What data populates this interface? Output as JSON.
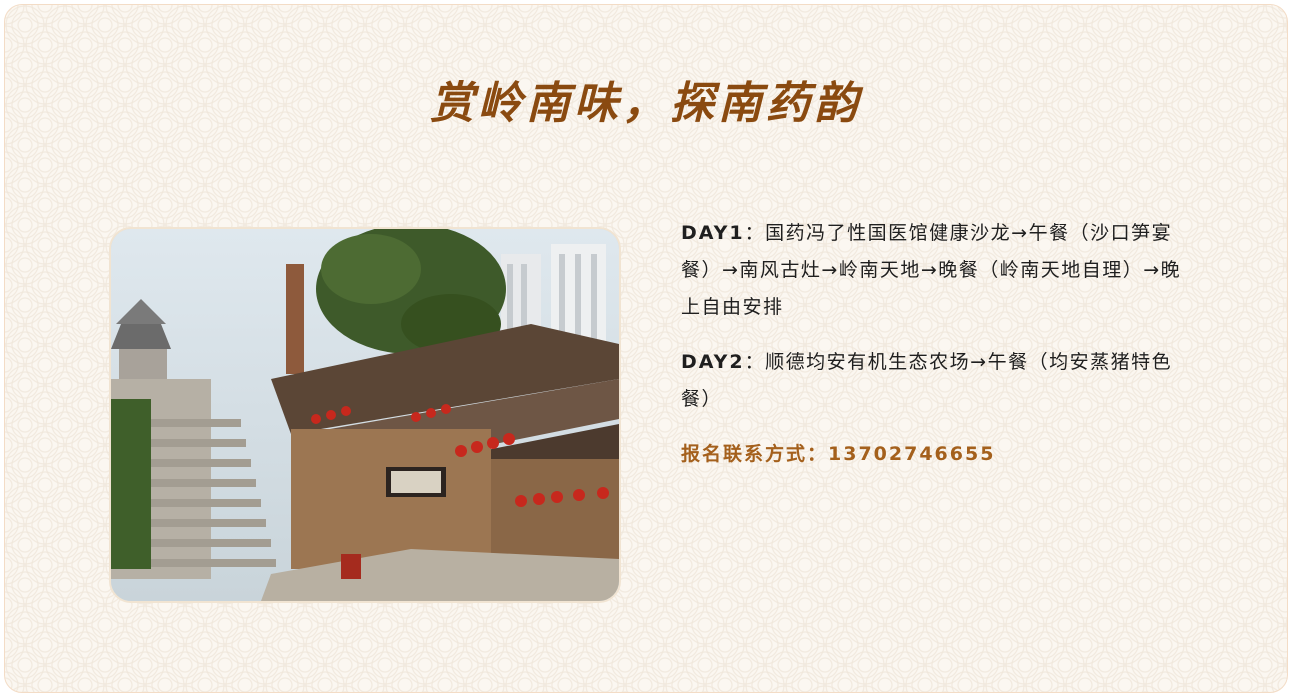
{
  "title": "赏岭南味，探南药韵",
  "image": {
    "icon": "ancient-village-street-photo"
  },
  "itinerary": [
    {
      "day": "DAY1",
      "sep": "：",
      "text": "国药冯了性国医馆健康沙龙→午餐（沙口笋宴餐）→南风古灶→岭南天地→晚餐（岭南天地自理）→晚上自由安排"
    },
    {
      "day": "DAY2",
      "sep": "：",
      "text": "顺德均安有机生态农场→午餐（均安蒸猪特色餐）"
    }
  ],
  "contact": {
    "label": "报名联系方式：",
    "phone": "13702746655"
  },
  "colors": {
    "title": "#8a4a10",
    "contact": "#a4601c",
    "background": "#fbf7f1"
  }
}
